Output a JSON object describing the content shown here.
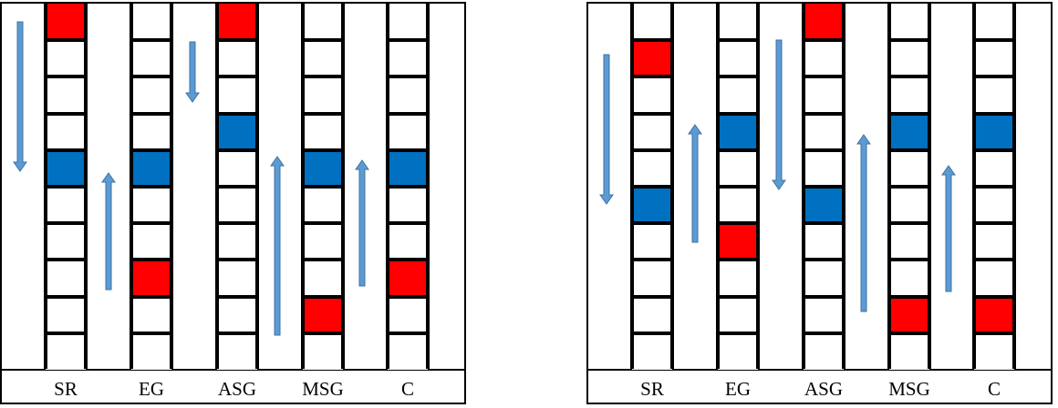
{
  "panels": [
    {
      "columns": [
        {
          "label": "SR",
          "states": [
            "red",
            "empty",
            "empty",
            "empty",
            "blue",
            "empty",
            "empty",
            "empty",
            "empty",
            "empty"
          ]
        },
        {
          "label": "EG",
          "states": [
            "empty",
            "empty",
            "empty",
            "empty",
            "blue",
            "empty",
            "empty",
            "red",
            "empty",
            "empty"
          ]
        },
        {
          "label": "ASG",
          "states": [
            "red",
            "empty",
            "empty",
            "blue",
            "empty",
            "empty",
            "empty",
            "empty",
            "empty",
            "empty"
          ]
        },
        {
          "label": "MSG",
          "states": [
            "empty",
            "empty",
            "empty",
            "empty",
            "blue",
            "empty",
            "empty",
            "empty",
            "red",
            "empty"
          ]
        },
        {
          "label": "C",
          "states": [
            "empty",
            "empty",
            "empty",
            "empty",
            "blue",
            "empty",
            "empty",
            "red",
            "empty",
            "empty"
          ]
        }
      ],
      "arrows": [
        {
          "gap": 0,
          "direction": "down"
        },
        {
          "gap": 1,
          "direction": "up"
        },
        {
          "gap": 2,
          "direction": "down"
        },
        {
          "gap": 3,
          "direction": "up"
        },
        {
          "gap": 4,
          "direction": "up"
        }
      ]
    },
    {
      "columns": [
        {
          "label": "SR",
          "states": [
            "empty",
            "red",
            "empty",
            "empty",
            "empty",
            "blue",
            "empty",
            "empty",
            "empty",
            "empty"
          ]
        },
        {
          "label": "EG",
          "states": [
            "empty",
            "empty",
            "empty",
            "blue",
            "empty",
            "empty",
            "red",
            "empty",
            "empty",
            "empty"
          ]
        },
        {
          "label": "ASG",
          "states": [
            "red",
            "empty",
            "empty",
            "empty",
            "empty",
            "blue",
            "empty",
            "empty",
            "empty",
            "empty"
          ]
        },
        {
          "label": "MSG",
          "states": [
            "empty",
            "empty",
            "empty",
            "blue",
            "empty",
            "empty",
            "empty",
            "empty",
            "red",
            "empty"
          ]
        },
        {
          "label": "C",
          "states": [
            "empty",
            "empty",
            "empty",
            "blue",
            "empty",
            "empty",
            "empty",
            "empty",
            "red",
            "empty"
          ]
        }
      ],
      "arrows": [
        {
          "gap": 0,
          "direction": "down"
        },
        {
          "gap": 1,
          "direction": "up"
        },
        {
          "gap": 2,
          "direction": "down"
        },
        {
          "gap": 3,
          "direction": "up"
        },
        {
          "gap": 4,
          "direction": "up"
        }
      ]
    }
  ],
  "colors": {
    "red": "#ff0000",
    "blue": "#0070c0",
    "arrow_fill": "#5b9bd5",
    "arrow_stroke": "#41719c"
  }
}
